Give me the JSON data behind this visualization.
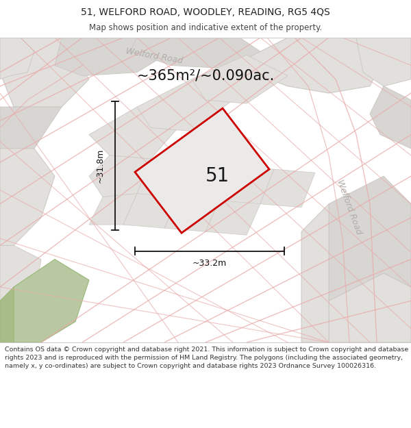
{
  "title_line1": "51, WELFORD ROAD, WOODLEY, READING, RG5 4QS",
  "title_line2": "Map shows position and indicative extent of the property.",
  "area_text": "~365m²/~0.090ac.",
  "number_label": "51",
  "dim_width": "~33.2m",
  "dim_height": "~31.8m",
  "road_label_top": "Welford Road",
  "road_label_right": "Welford Road",
  "footer_text": "Contains OS data © Crown copyright and database right 2021. This information is subject to Crown copyright and database rights 2023 and is reproduced with the permission of HM Land Registry. The polygons (including the associated geometry, namely x, y co-ordinates) are subject to Crown copyright and database rights 2023 Ordnance Survey 100026316.",
  "map_bg": "#f2f0ed",
  "block_light": "#e2e0dc",
  "block_mid": "#d8d6d2",
  "road_color": "#ccc9c4",
  "pink": "#e8aaaa",
  "green_fill": "#b8c8a0",
  "prop_fill": "#ece9e9",
  "prop_edge": "#cc0000",
  "dim_color": "#111111",
  "road_text_color": "#b0aeaa",
  "sep_color": "#cccccc",
  "footer_color": "#333333",
  "title_color": "#222222",
  "area_color": "#111111",
  "number_color": "#1a1a1a"
}
